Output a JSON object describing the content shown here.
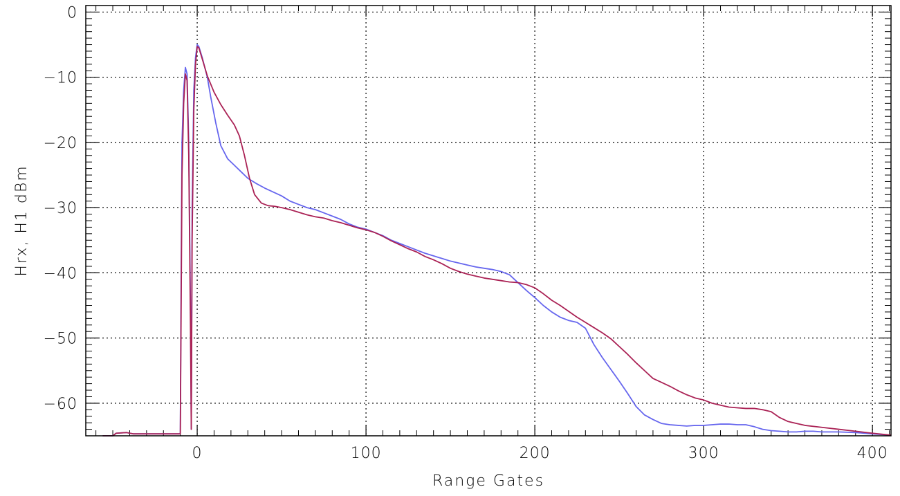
{
  "chart_data": {
    "type": "line",
    "title": "",
    "xlabel": "Range Gates",
    "ylabel": "Hrx, H1 dBm",
    "xlim": [
      -66,
      411
    ],
    "ylim": [
      -65,
      1
    ],
    "x_ticks": [
      0,
      100,
      200,
      300,
      400
    ],
    "y_ticks": [
      0,
      -10,
      -20,
      -30,
      -40,
      -50,
      -60
    ],
    "x_minor_step": 10,
    "y_minor_step": 1,
    "grid": true,
    "grid_style": "dotted",
    "legend": "none",
    "series": [
      {
        "color": "#6666ee",
        "points": [
          [
            -56,
            -65
          ],
          [
            -50,
            -65
          ],
          [
            -48,
            -64.6
          ],
          [
            -42,
            -64.5
          ],
          [
            -38,
            -64.7
          ],
          [
            -30,
            -64.7
          ],
          [
            -20,
            -64.7
          ],
          [
            -10,
            -64.7
          ],
          [
            -9.5,
            -40
          ],
          [
            -9,
            -20
          ],
          [
            -8,
            -12
          ],
          [
            -7,
            -8.5
          ],
          [
            -6,
            -9.5
          ],
          [
            -5,
            -20
          ],
          [
            -4,
            -45
          ],
          [
            -3.5,
            -64
          ],
          [
            -3,
            -30
          ],
          [
            -2,
            -12
          ],
          [
            -1,
            -7
          ],
          [
            0,
            -5
          ],
          [
            1,
            -5.3
          ],
          [
            3,
            -7
          ],
          [
            6,
            -10
          ],
          [
            8,
            -13
          ],
          [
            11,
            -17
          ],
          [
            14,
            -20.5
          ],
          [
            18,
            -22.5
          ],
          [
            22,
            -23.5
          ],
          [
            26,
            -24.5
          ],
          [
            30,
            -25.5
          ],
          [
            35,
            -26.3
          ],
          [
            40,
            -27
          ],
          [
            45,
            -27.6
          ],
          [
            50,
            -28.2
          ],
          [
            55,
            -29
          ],
          [
            60,
            -29.5
          ],
          [
            65,
            -30
          ],
          [
            70,
            -30.3
          ],
          [
            75,
            -30.8
          ],
          [
            80,
            -31.3
          ],
          [
            85,
            -31.8
          ],
          [
            90,
            -32.5
          ],
          [
            95,
            -33
          ],
          [
            100,
            -33.3
          ],
          [
            105,
            -33.8
          ],
          [
            110,
            -34.3
          ],
          [
            115,
            -35
          ],
          [
            120,
            -35.5
          ],
          [
            125,
            -36
          ],
          [
            130,
            -36.5
          ],
          [
            135,
            -37
          ],
          [
            140,
            -37.4
          ],
          [
            145,
            -37.8
          ],
          [
            150,
            -38.2
          ],
          [
            155,
            -38.5
          ],
          [
            160,
            -38.8
          ],
          [
            165,
            -39.1
          ],
          [
            170,
            -39.3
          ],
          [
            175,
            -39.5
          ],
          [
            180,
            -39.8
          ],
          [
            185,
            -40.3
          ],
          [
            190,
            -41.5
          ],
          [
            195,
            -42.7
          ],
          [
            200,
            -43.8
          ],
          [
            205,
            -45
          ],
          [
            210,
            -46
          ],
          [
            215,
            -46.8
          ],
          [
            220,
            -47.3
          ],
          [
            225,
            -47.6
          ],
          [
            230,
            -48.5
          ],
          [
            235,
            -51
          ],
          [
            240,
            -53
          ],
          [
            245,
            -54.8
          ],
          [
            250,
            -56.6
          ],
          [
            255,
            -58.5
          ],
          [
            260,
            -60.5
          ],
          [
            265,
            -61.8
          ],
          [
            270,
            -62.5
          ],
          [
            275,
            -63.1
          ],
          [
            280,
            -63.3
          ],
          [
            285,
            -63.4
          ],
          [
            290,
            -63.5
          ],
          [
            295,
            -63.4
          ],
          [
            300,
            -63.4
          ],
          [
            305,
            -63.3
          ],
          [
            310,
            -63.2
          ],
          [
            315,
            -63.2
          ],
          [
            320,
            -63.3
          ],
          [
            325,
            -63.3
          ],
          [
            330,
            -63.6
          ],
          [
            335,
            -64
          ],
          [
            340,
            -64.2
          ],
          [
            345,
            -64.3
          ],
          [
            350,
            -64.4
          ],
          [
            355,
            -64.4
          ],
          [
            360,
            -64.3
          ],
          [
            365,
            -64.3
          ],
          [
            370,
            -64.4
          ],
          [
            380,
            -64.4
          ],
          [
            390,
            -64.5
          ],
          [
            400,
            -64.7
          ],
          [
            405,
            -64.8
          ],
          [
            411,
            -64.9
          ]
        ]
      },
      {
        "color": "#aa2255",
        "points": [
          [
            -56,
            -65
          ],
          [
            -50,
            -65
          ],
          [
            -48,
            -64.6
          ],
          [
            -42,
            -64.5
          ],
          [
            -38,
            -64.7
          ],
          [
            -30,
            -64.7
          ],
          [
            -20,
            -64.7
          ],
          [
            -10,
            -64.7
          ],
          [
            -9.5,
            -45
          ],
          [
            -9,
            -25
          ],
          [
            -8,
            -14
          ],
          [
            -7,
            -9.5
          ],
          [
            -6,
            -10.5
          ],
          [
            -5,
            -22
          ],
          [
            -4,
            -48
          ],
          [
            -3.5,
            -64
          ],
          [
            -3,
            -35
          ],
          [
            -2,
            -15
          ],
          [
            -1,
            -8
          ],
          [
            0,
            -5.3
          ],
          [
            1,
            -5.5
          ],
          [
            3,
            -7.2
          ],
          [
            6,
            -9.8
          ],
          [
            10,
            -12.3
          ],
          [
            14,
            -14.2
          ],
          [
            18,
            -15.8
          ],
          [
            22,
            -17.3
          ],
          [
            25,
            -19
          ],
          [
            28,
            -22
          ],
          [
            31,
            -25.5
          ],
          [
            34,
            -28
          ],
          [
            38,
            -29.3
          ],
          [
            42,
            -29.7
          ],
          [
            46,
            -29.8
          ],
          [
            50,
            -30
          ],
          [
            55,
            -30.3
          ],
          [
            60,
            -30.7
          ],
          [
            65,
            -31.1
          ],
          [
            70,
            -31.4
          ],
          [
            75,
            -31.6
          ],
          [
            80,
            -32
          ],
          [
            85,
            -32.3
          ],
          [
            90,
            -32.7
          ],
          [
            95,
            -33.1
          ],
          [
            100,
            -33.4
          ],
          [
            105,
            -33.8
          ],
          [
            110,
            -34.4
          ],
          [
            115,
            -35.1
          ],
          [
            120,
            -35.7
          ],
          [
            125,
            -36.3
          ],
          [
            130,
            -36.8
          ],
          [
            135,
            -37.5
          ],
          [
            140,
            -38
          ],
          [
            145,
            -38.6
          ],
          [
            150,
            -39.3
          ],
          [
            155,
            -39.8
          ],
          [
            160,
            -40.2
          ],
          [
            165,
            -40.5
          ],
          [
            170,
            -40.8
          ],
          [
            175,
            -41
          ],
          [
            180,
            -41.2
          ],
          [
            185,
            -41.4
          ],
          [
            190,
            -41.5
          ],
          [
            195,
            -41.8
          ],
          [
            200,
            -42.3
          ],
          [
            205,
            -43.2
          ],
          [
            210,
            -44.2
          ],
          [
            215,
            -45
          ],
          [
            220,
            -45.9
          ],
          [
            225,
            -46.8
          ],
          [
            230,
            -47.6
          ],
          [
            235,
            -48.4
          ],
          [
            240,
            -49.2
          ],
          [
            245,
            -50.1
          ],
          [
            250,
            -51.3
          ],
          [
            255,
            -52.5
          ],
          [
            260,
            -53.8
          ],
          [
            265,
            -55
          ],
          [
            270,
            -56.2
          ],
          [
            275,
            -56.8
          ],
          [
            280,
            -57.4
          ],
          [
            285,
            -58.1
          ],
          [
            290,
            -58.7
          ],
          [
            295,
            -59.2
          ],
          [
            300,
            -59.5
          ],
          [
            305,
            -60
          ],
          [
            310,
            -60.3
          ],
          [
            315,
            -60.6
          ],
          [
            320,
            -60.7
          ],
          [
            325,
            -60.8
          ],
          [
            330,
            -60.8
          ],
          [
            335,
            -61
          ],
          [
            340,
            -61.3
          ],
          [
            345,
            -62.2
          ],
          [
            350,
            -62.8
          ],
          [
            355,
            -63.1
          ],
          [
            360,
            -63.4
          ],
          [
            370,
            -63.7
          ],
          [
            380,
            -64
          ],
          [
            390,
            -64.3
          ],
          [
            400,
            -64.6
          ],
          [
            411,
            -64.9
          ]
        ]
      }
    ]
  }
}
